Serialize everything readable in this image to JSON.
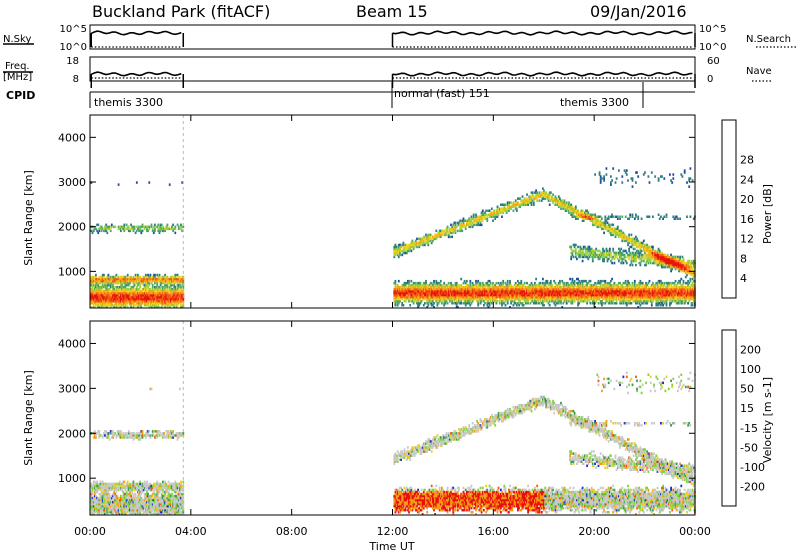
{
  "header": {
    "site": "Buckland Park (fitACF)",
    "beam": "Beam 15",
    "date": "09/Jan/2016"
  },
  "strips": {
    "nsky_label": "N.Sky",
    "nsky_ticks": [
      "10^5",
      "10^0"
    ],
    "nsearch_label": "N.Search",
    "nsearch_ticks": [
      "10^5",
      "10^0"
    ],
    "freq_label_1": "Freq.",
    "freq_label_2": "[MHz]",
    "freq_ticks": [
      "18",
      "8"
    ],
    "nave_label": "Nave",
    "nave_ticks": [
      "60",
      "0"
    ],
    "cpid_label": "CPID",
    "cpid_entries": [
      "themis 3300",
      "normal (fast) 151",
      "themis 3300"
    ]
  },
  "chart_data": [
    {
      "type": "heatmap",
      "panel": "power",
      "ylabel": "Slant Range [km]",
      "yticks": [
        1000,
        2000,
        3000,
        4000
      ],
      "ylim": [
        180,
        4500
      ],
      "xlim_hours": [
        0,
        24
      ],
      "colorbar_label": "Power [dB]",
      "colorbar_ticks": [
        "4",
        "8",
        "12",
        "16",
        "20",
        "24",
        "28"
      ],
      "colorbar_colors": [
        "#0a16e0",
        "#1e4fa0",
        "#2f7f82",
        "#4aa56a",
        "#9ccf3c",
        "#f1d21a",
        "#f7a21a",
        "#f45a14",
        "#e8140e"
      ],
      "data_gaps_hours": [
        [
          3.7,
          12.0
        ]
      ]
    },
    {
      "type": "heatmap",
      "panel": "velocity",
      "xlabel": "Time UT",
      "xticks": [
        "00:00",
        "04:00",
        "08:00",
        "12:00",
        "16:00",
        "20:00",
        "00:00"
      ],
      "ylabel": "Slant Range [km]",
      "yticks": [
        1000,
        2000,
        3000,
        4000
      ],
      "ylim": [
        180,
        4500
      ],
      "xlim_hours": [
        0,
        24
      ],
      "colorbar_label": "Velocity [m s-1]",
      "colorbar_ticks": [
        "200",
        "100",
        "50",
        "15",
        "-15",
        "-50",
        "-100",
        "-200"
      ],
      "colorbar_colors": [
        "#1a2bd0",
        "#2c6fa0",
        "#3a9a5a",
        "#7fd43a",
        "#c8c8c8",
        "#f0cc22",
        "#f59a14",
        "#f05a10",
        "#e8100a"
      ],
      "data_gaps_hours": [
        [
          3.7,
          12.0
        ]
      ]
    }
  ]
}
